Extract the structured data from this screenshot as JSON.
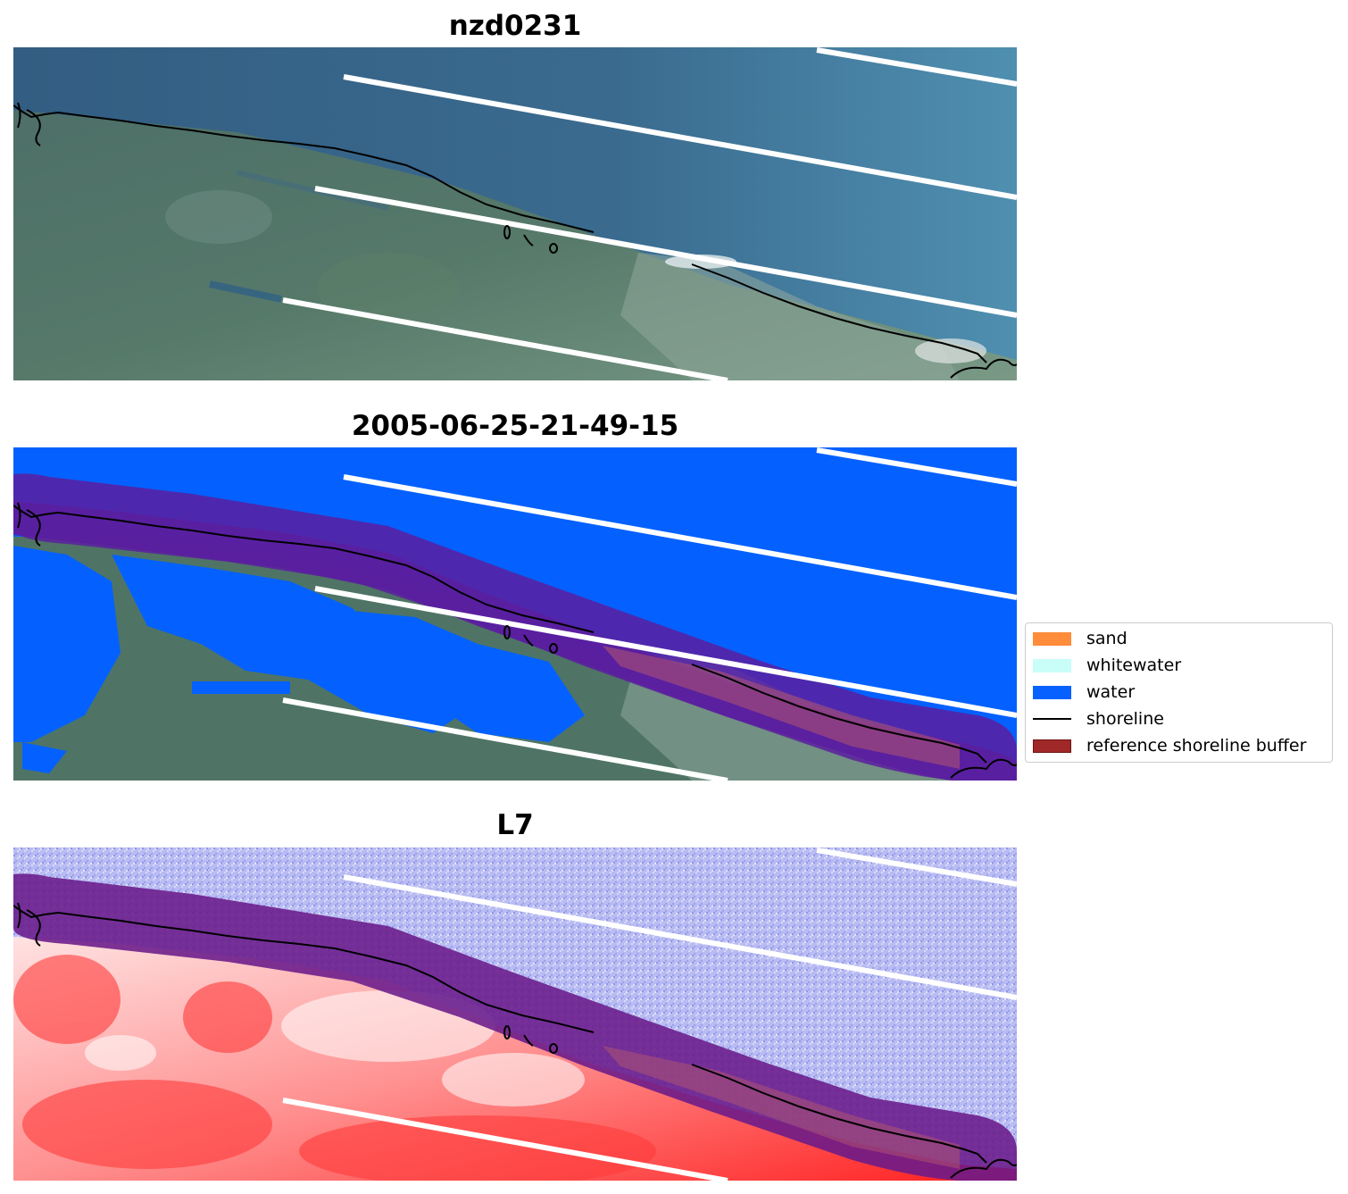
{
  "panels": [
    {
      "title": "nzd0231",
      "kind": "rgb"
    },
    {
      "title": "2005-06-25-21-49-15",
      "kind": "classified"
    },
    {
      "title": "L7",
      "kind": "index"
    }
  ],
  "legend": {
    "items": [
      {
        "label": "sand",
        "type": "patch",
        "color": "#ff8c3a"
      },
      {
        "label": "whitewater",
        "type": "patch",
        "color": "#c8fdf8"
      },
      {
        "label": "water",
        "type": "patch",
        "color": "#0761ff"
      },
      {
        "label": "shoreline",
        "type": "line",
        "color": "#000000"
      },
      {
        "label": "reference shoreline buffer",
        "type": "patch",
        "color": "#a02828",
        "edge": "#6e1414"
      }
    ]
  },
  "colors": {
    "sea_rgb": "#3c6a8e",
    "land_rgb": "#4f7466",
    "water_class": "#0461ff",
    "buffer": "#5b1ea0",
    "index_water": "#b3b8f0",
    "index_land": "#ff2a2a",
    "stripe": "#ffffff",
    "shoreline": "#000000"
  }
}
